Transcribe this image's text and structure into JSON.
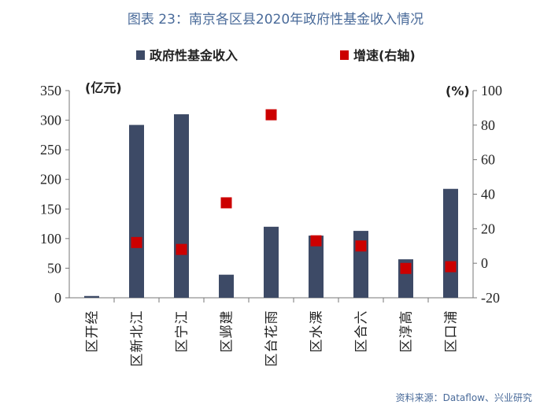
{
  "title": "图表 23：南京各区县2020年政府性基金收入情况",
  "source": "资料来源：Dataflow、兴业研究",
  "colors": {
    "bar": "#3d4a66",
    "point": "#cc0000",
    "title": "#4a6b9a",
    "neg_tick": "#cc0000"
  },
  "chart_data": {
    "type": "bar+scatter",
    "categories": [
      "经开区",
      "江北新区",
      "江宁区",
      "建邺区",
      "雨花台区",
      "溧水区",
      "六合区",
      "高淳区",
      "浦口区"
    ],
    "series": [
      {
        "name": "政府性基金收入",
        "axis": "left",
        "type": "bar",
        "values": [
          3,
          292,
          310,
          39,
          120,
          105,
          113,
          65,
          184
        ]
      },
      {
        "name": "增速(右轴)",
        "axis": "right",
        "type": "scatter",
        "values": [
          null,
          12,
          8,
          35,
          86,
          13,
          10,
          -3,
          -2
        ]
      }
    ],
    "y_left": {
      "label": "(亿元)",
      "lim": [
        0,
        350
      ],
      "ticks": [
        "0",
        "50",
        "100",
        "150",
        "200",
        "250",
        "300",
        "350"
      ]
    },
    "y_right": {
      "label": "(%)",
      "lim": [
        -20,
        100
      ],
      "ticks": [
        "-20",
        "0",
        "20",
        "40",
        "60",
        "80",
        "100"
      ]
    },
    "legend": [
      "政府性基金收入",
      "增速(右轴)"
    ]
  }
}
